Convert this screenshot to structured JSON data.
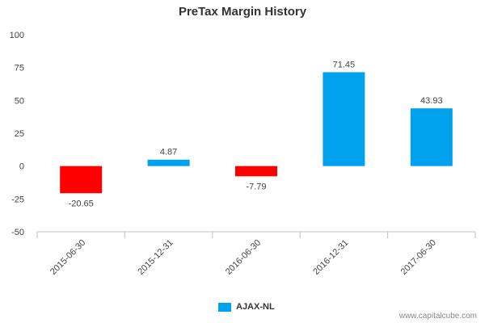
{
  "chart_data": {
    "type": "bar",
    "title": "PreTax Margin History",
    "categories": [
      "2015-06-30",
      "2015-12-31",
      "2016-06-30",
      "2016-12-31",
      "2017-06-30"
    ],
    "series": [
      {
        "name": "AJAX-NL",
        "values": [
          -20.65,
          4.87,
          -7.79,
          71.45,
          43.93
        ]
      }
    ],
    "data_labels": [
      "-20.65",
      "4.87",
      "-7.79",
      "71.45",
      "43.93"
    ],
    "y_ticks": [
      "100",
      "75",
      "50",
      "25",
      "0",
      "-25",
      "-50"
    ],
    "ylim": [
      -50,
      100
    ],
    "grid": false,
    "legend": "bottom-center",
    "colors": {
      "positive": "#00a2ee",
      "negative": "#ff0000"
    }
  },
  "footer": {
    "credit": "www.capitalcube.com"
  }
}
